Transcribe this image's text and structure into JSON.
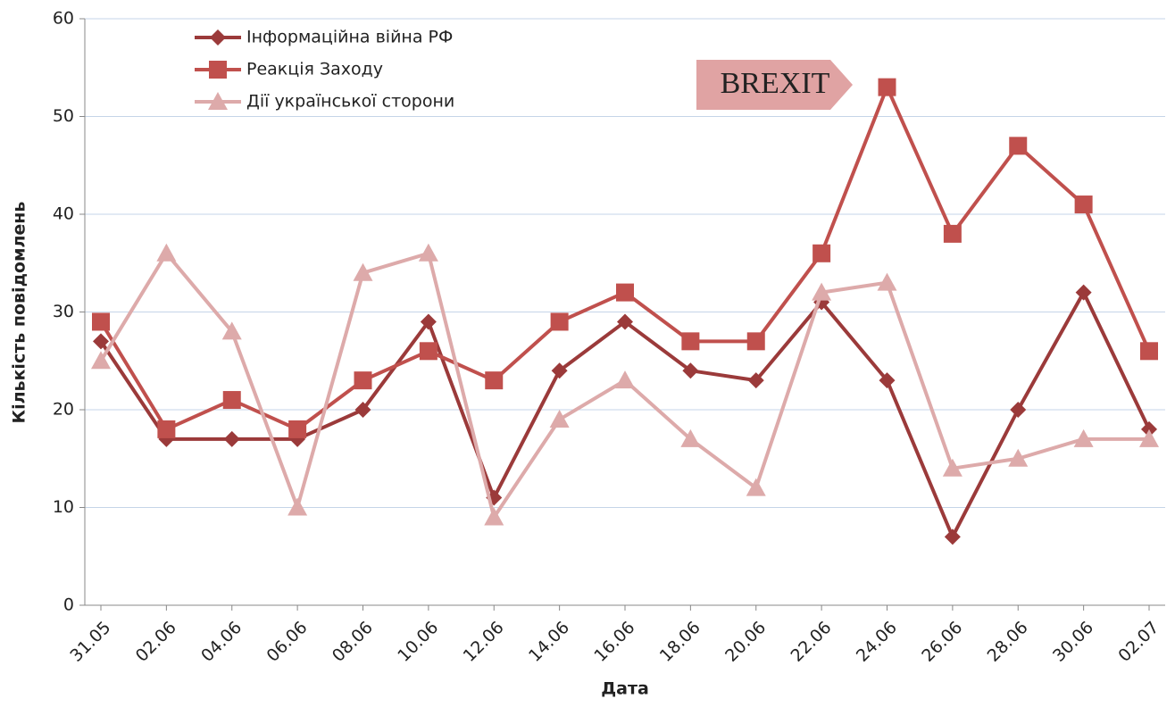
{
  "chart_data": {
    "type": "line",
    "categories": [
      "31.05",
      "02.06",
      "04.06",
      "06.06",
      "08.06",
      "10.06",
      "12.06",
      "14.06",
      "16.06",
      "18.06",
      "20.06",
      "22.06",
      "24.06",
      "26.06",
      "28.06",
      "30.06",
      "02.07"
    ],
    "series": [
      {
        "name": "Інформаційна війна РФ",
        "color": "#9b3a3a",
        "marker": "diamond",
        "values": [
          27,
          17,
          17,
          17,
          20,
          29,
          11,
          24,
          29,
          24,
          23,
          31,
          23,
          7,
          20,
          32,
          18
        ]
      },
      {
        "name": "Реакція Заходу",
        "color": "#c0504d",
        "marker": "square",
        "values": [
          29,
          18,
          21,
          18,
          23,
          26,
          23,
          29,
          32,
          27,
          27,
          36,
          53,
          38,
          47,
          41,
          26
        ]
      },
      {
        "name": "Дії української сторони",
        "color": "#ddaaaa",
        "marker": "triangle",
        "values": [
          25,
          36,
          28,
          10,
          34,
          36,
          9,
          19,
          23,
          17,
          12,
          32,
          33,
          14,
          15,
          17,
          17
        ]
      }
    ],
    "ylim": [
      0,
      60
    ],
    "yticks": [
      0,
      10,
      20,
      30,
      40,
      50,
      60
    ],
    "grid": true,
    "xlabel": "Дата",
    "ylabel": "Кількість повідомлень",
    "annotation": "BREXIT"
  }
}
